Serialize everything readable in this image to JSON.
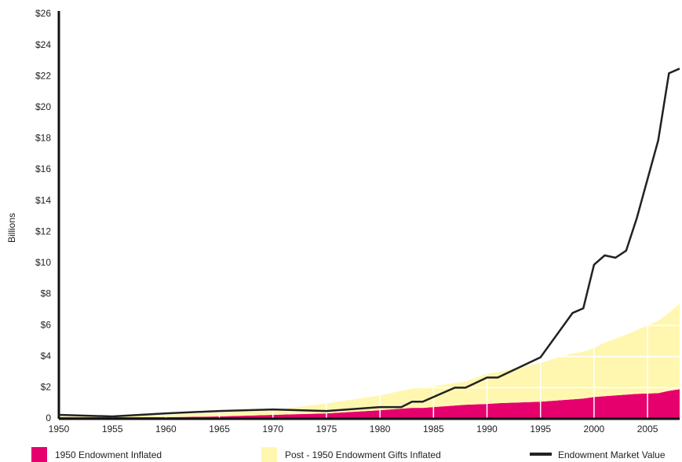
{
  "chart_data": {
    "type": "stacked_area_line",
    "y_label": "Billions",
    "x": [
      1950,
      1955,
      1960,
      1965,
      1970,
      1975,
      1980,
      1982,
      1983,
      1984,
      1987,
      1988,
      1990,
      1991,
      1995,
      1998,
      1999,
      2000,
      2001,
      2002,
      2003,
      2004,
      2006,
      2007,
      2008
    ],
    "series": [
      {
        "name": "1950 Endowment Inflated",
        "color": "#e5006e",
        "kind": "area",
        "values": [
          0.1,
          0.1,
          0.1,
          0.15,
          0.25,
          0.35,
          0.55,
          0.65,
          0.7,
          0.7,
          0.85,
          0.9,
          0.95,
          1.0,
          1.1,
          1.25,
          1.3,
          1.4,
          1.45,
          1.5,
          1.55,
          1.6,
          1.65,
          1.8,
          1.9
        ]
      },
      {
        "name": "Post - 1950 Endowment Gifts Inflated",
        "color": "#fff7b0",
        "kind": "area",
        "values": [
          0.05,
          0.05,
          0.15,
          0.25,
          0.3,
          0.65,
          0.95,
          1.15,
          1.25,
          1.3,
          1.45,
          1.5,
          1.95,
          2.0,
          2.5,
          2.95,
          3.0,
          3.15,
          3.45,
          3.65,
          3.85,
          4.1,
          4.65,
          5.0,
          5.5
        ]
      },
      {
        "name": "Endowment Market Value",
        "color": "#222222",
        "kind": "line",
        "values": [
          0.25,
          0.15,
          0.35,
          0.5,
          0.6,
          0.5,
          0.75,
          0.75,
          1.1,
          1.1,
          2.0,
          2.0,
          2.65,
          2.65,
          3.95,
          6.8,
          7.1,
          9.9,
          10.5,
          10.35,
          10.8,
          12.9,
          17.9,
          22.2,
          22.5
        ]
      }
    ],
    "xlim": [
      1950,
      2008
    ],
    "xticks": [
      1950,
      1955,
      1960,
      1965,
      1970,
      1975,
      1980,
      1985,
      1990,
      1995,
      2000,
      2005
    ],
    "ylim": [
      0,
      26
    ],
    "yticks": [
      0,
      {
        "value": 2,
        "label": "$2"
      },
      {
        "value": 4,
        "label": "$4"
      },
      {
        "value": 6,
        "label": "$6"
      },
      {
        "value": 8,
        "label": "$8"
      },
      {
        "value": 10,
        "label": "$10"
      },
      {
        "value": 12,
        "label": "$12"
      },
      {
        "value": 14,
        "label": "$14"
      },
      {
        "value": 16,
        "label": "$16"
      },
      {
        "value": 18,
        "label": "$18"
      },
      {
        "value": 20,
        "label": "$20"
      },
      {
        "value": 22,
        "label": "$22"
      },
      {
        "value": 24,
        "label": "$24"
      },
      {
        "value": 26,
        "label": "$26"
      }
    ],
    "grid": true
  }
}
